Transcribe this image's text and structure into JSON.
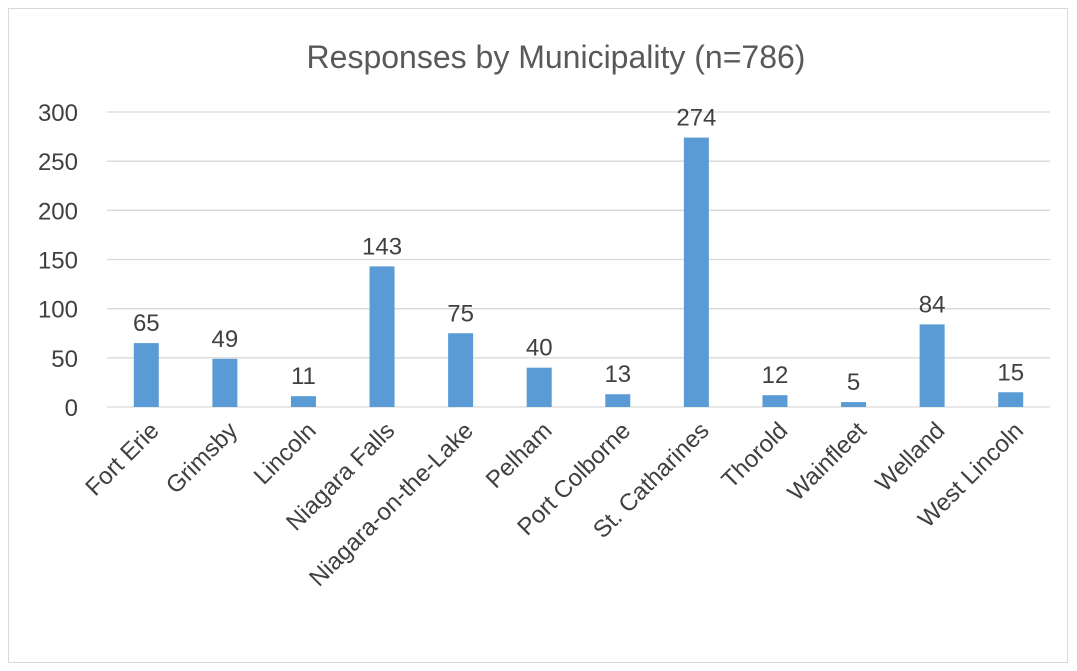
{
  "chart_data": {
    "type": "bar",
    "title": "Responses by Municipality (n=786)",
    "xlabel": "",
    "ylabel": "",
    "categories": [
      "Fort Erie",
      "Grimsby",
      "Lincoln",
      "Niagara Falls",
      "Niagara-on-the-Lake",
      "Pelham",
      "Port Colborne",
      "St. Catharines",
      "Thorold",
      "Wainfleet",
      "Welland",
      "West Lincoln"
    ],
    "values": [
      65,
      49,
      11,
      143,
      75,
      40,
      13,
      274,
      12,
      5,
      84,
      15
    ],
    "ylim": [
      0,
      300
    ],
    "yticks": [
      0,
      50,
      100,
      150,
      200,
      250,
      300
    ],
    "grid": true,
    "legend": "none",
    "bar_color": "#5b9bd5",
    "grid_color": "#d9d9d9"
  }
}
